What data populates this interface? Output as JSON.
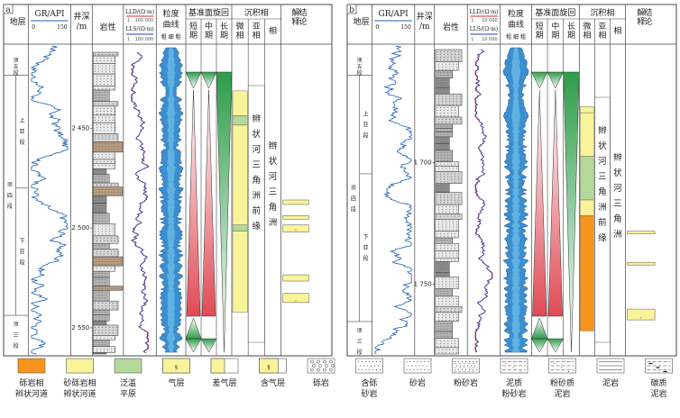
{
  "panels": [
    {
      "id": "a",
      "headers": {
        "formation": "地层",
        "gr": "GR/API",
        "gr_min": "0",
        "gr_max": "150",
        "depth": "井深/m",
        "lithology": "岩性",
        "lld": "LLD/(Ω·m)",
        "lld_min": "1",
        "lld_max": "100 000",
        "lls": "LLS/(Ω·m)",
        "lls_min": "1",
        "lls_max": "100 000",
        "grain": "粒度曲线",
        "grain_sub": "粗 细 粗",
        "cycle": "基准面旋回",
        "cycle_short": "短期",
        "cycle_mid": "中期",
        "cycle_long": "长期",
        "facies": "沉积相",
        "micro": "微相",
        "sub": "亚相",
        "phase": "相",
        "interp": "解释结论"
      },
      "strat": {
        "top": "须五段",
        "upper": "上亚段",
        "member": "须四段",
        "lower": "下亚段",
        "bottom": "须三段"
      },
      "depths": [
        "2 450",
        "2 500",
        "2 550"
      ],
      "subfacies": "辫状河三角洲前缘",
      "facies_name": "辫状河三角洲"
    },
    {
      "id": "b",
      "headers": {
        "formation": "地层",
        "gr": "GR/API",
        "gr_min": "0",
        "gr_max": "150",
        "depth": "井深/m",
        "lithology": "岩性",
        "lld": "LLD/(Ω·m)",
        "lld_min": "1",
        "lld_max": "10 000",
        "lls": "LLS/(Ω·m)",
        "lls_min": "1",
        "lls_max": "10 000",
        "grain": "粒度曲线",
        "grain_sub": "粗 细 粗",
        "cycle": "基准面旋回",
        "cycle_short": "短期",
        "cycle_mid": "中期",
        "cycle_long": "长期",
        "facies": "沉积相",
        "micro": "微相",
        "sub": "亚相",
        "phase": "相",
        "interp": "解释结论"
      },
      "strat": {
        "top": "须五段",
        "upper": "上亚段",
        "member": "须四段",
        "lower": "下亚段",
        "bottom": "须三段"
      },
      "depths": [
        "1 700",
        "1 750"
      ],
      "subfacies": "辫状河三角洲前缘",
      "facies_name": "辫状河三角洲"
    }
  ],
  "legend": [
    {
      "label1": "砾岩相",
      "label2": "辫状河道",
      "kind": "color",
      "color": "#f7941d"
    },
    {
      "label1": "砂砾岩相",
      "label2": "辫状河道",
      "kind": "color",
      "color": "#f9f39a"
    },
    {
      "label1": "泛滥",
      "label2": "平原",
      "kind": "color",
      "color": "#b4d89a"
    },
    {
      "label1": "气层",
      "label2": "",
      "kind": "gas"
    },
    {
      "label1": "差气层",
      "label2": "",
      "kind": "poorgas"
    },
    {
      "label1": "含气层",
      "label2": "",
      "kind": "gasbearing"
    },
    {
      "label1": "砾岩",
      "label2": "",
      "kind": "conglomerate"
    },
    {
      "label1": "含砾",
      "label2": "砂岩",
      "kind": "pebbly"
    },
    {
      "label1": "砂岩",
      "label2": "",
      "kind": "sandstone"
    },
    {
      "label1": "粉砂岩",
      "label2": "",
      "kind": "siltstone"
    },
    {
      "label1": "泥质",
      "label2": "粉砂岩",
      "kind": "argsilt"
    },
    {
      "label1": "粉砂质",
      "label2": "泥岩",
      "kind": "siltmud"
    },
    {
      "label1": "泥岩",
      "label2": "",
      "kind": "mudstone"
    },
    {
      "label1": "碳质",
      "label2": "泥岩",
      "kind": "carbmud"
    }
  ],
  "colors": {
    "frame": "#444444",
    "gr_line": "#1f5fb5",
    "lld_line": "#d6283a",
    "lls_line": "#2b3fa8",
    "grain_fill": "#3b8fd0",
    "grain_light": "#7fd0ef",
    "cycle_green": "#2e9d4a",
    "cycle_red": "#e04a55",
    "yellow": "#f9f39a",
    "green": "#b4d89a",
    "orange": "#f7941d",
    "litho_gray": "#a8a8a8"
  }
}
